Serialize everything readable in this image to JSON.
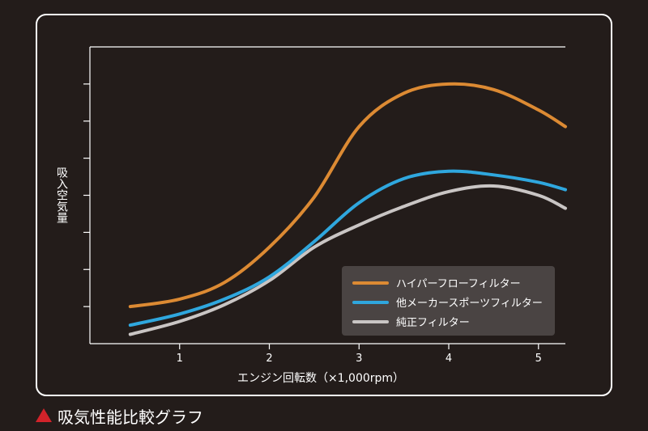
{
  "caption": "吸気性能比較グラフ",
  "colors": {
    "background": "#231c1a",
    "frame": "#ffffff",
    "marker": "#d2232a",
    "legend_bg": "#4a4443"
  },
  "chart_data": {
    "type": "line",
    "xlabel": "エンジン回転数（×1,000rpm）",
    "ylabel": "吸入空気量",
    "xlim": [
      0,
      5.3
    ],
    "ylim": [
      0,
      8
    ],
    "x_ticks": [
      "1",
      "2",
      "3",
      "4",
      "5"
    ],
    "y_tick_count": 7,
    "y_tick_labels_shown": false,
    "grid": false,
    "legend_position": "bottom-right",
    "series": [
      {
        "name": "ハイパーフローフィルター",
        "color": "#dc8a33",
        "x": [
          0.45,
          1.0,
          1.5,
          2.0,
          2.5,
          3.0,
          3.5,
          4.0,
          4.5,
          5.0,
          5.3
        ],
        "y": [
          1.0,
          1.2,
          1.65,
          2.6,
          3.95,
          5.85,
          6.75,
          7.0,
          6.85,
          6.3,
          5.85
        ]
      },
      {
        "name": "他メーカースポーツフィルター",
        "color": "#2fa7de",
        "x": [
          0.45,
          1.0,
          1.5,
          2.0,
          2.5,
          3.0,
          3.5,
          4.0,
          4.5,
          5.0,
          5.3
        ],
        "y": [
          0.5,
          0.8,
          1.2,
          1.8,
          2.75,
          3.8,
          4.45,
          4.65,
          4.55,
          4.35,
          4.15
        ]
      },
      {
        "name": "純正フィルター",
        "color": "#c9c5c4",
        "x": [
          0.45,
          1.0,
          1.5,
          2.0,
          2.5,
          3.0,
          3.5,
          4.0,
          4.5,
          5.0,
          5.3
        ],
        "y": [
          0.25,
          0.6,
          1.05,
          1.7,
          2.6,
          3.2,
          3.7,
          4.1,
          4.25,
          4.0,
          3.65
        ]
      }
    ]
  }
}
